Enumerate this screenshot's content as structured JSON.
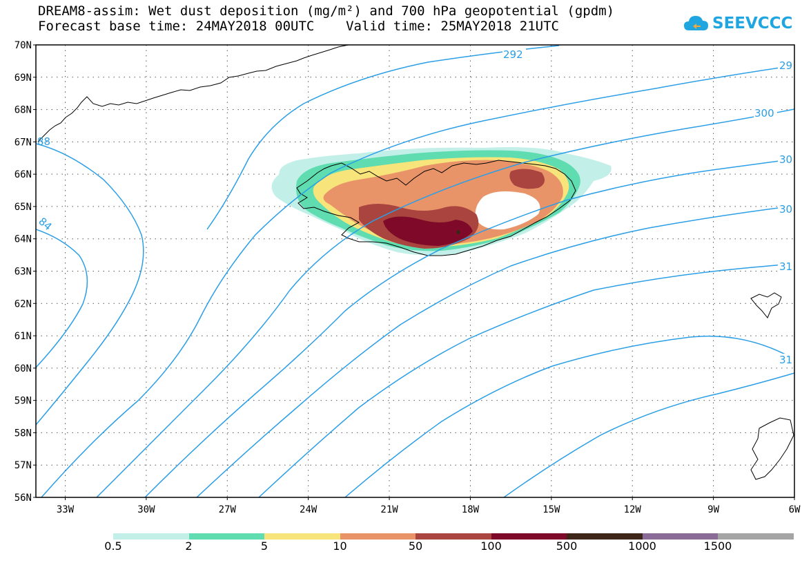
{
  "header": {
    "title_line1": "DREAM8-assim: Wet dust deposition (mg/m²) and 700 hPa geopotential (gpdm)",
    "title_line2": "Forecast base time: 24MAY2018 00UTC    Valid time: 25MAY2018 21UTC"
  },
  "logo": {
    "text": "SEEVCCC",
    "icon": "cloud-icon",
    "color": "#1fa6e0"
  },
  "map": {
    "lat_labels": [
      "70N",
      "69N",
      "68N",
      "67N",
      "66N",
      "65N",
      "64N",
      "63N",
      "62N",
      "61N",
      "60N",
      "59N",
      "58N",
      "57N",
      "56N"
    ],
    "lon_labels": [
      "33W",
      "30W",
      "27W",
      "24W",
      "21W",
      "18W",
      "15W",
      "12W",
      "9W",
      "6W"
    ],
    "contour_color": "#2a9ee6",
    "contour_labels": [
      "292",
      "29",
      "300",
      "30",
      "30",
      "31",
      "31",
      "84",
      "88"
    ],
    "coastline_color": "#000000"
  },
  "colorbar": {
    "colors": [
      "#c2f0e8",
      "#5fdcb0",
      "#f7e47a",
      "#e99468",
      "#a9453e",
      "#7e0928",
      "#3d2618",
      "#8a6a96",
      "#a5a5a5"
    ],
    "labels": [
      "0.5",
      "2",
      "5",
      "10",
      "50",
      "100",
      "500",
      "1000",
      "1500"
    ]
  }
}
